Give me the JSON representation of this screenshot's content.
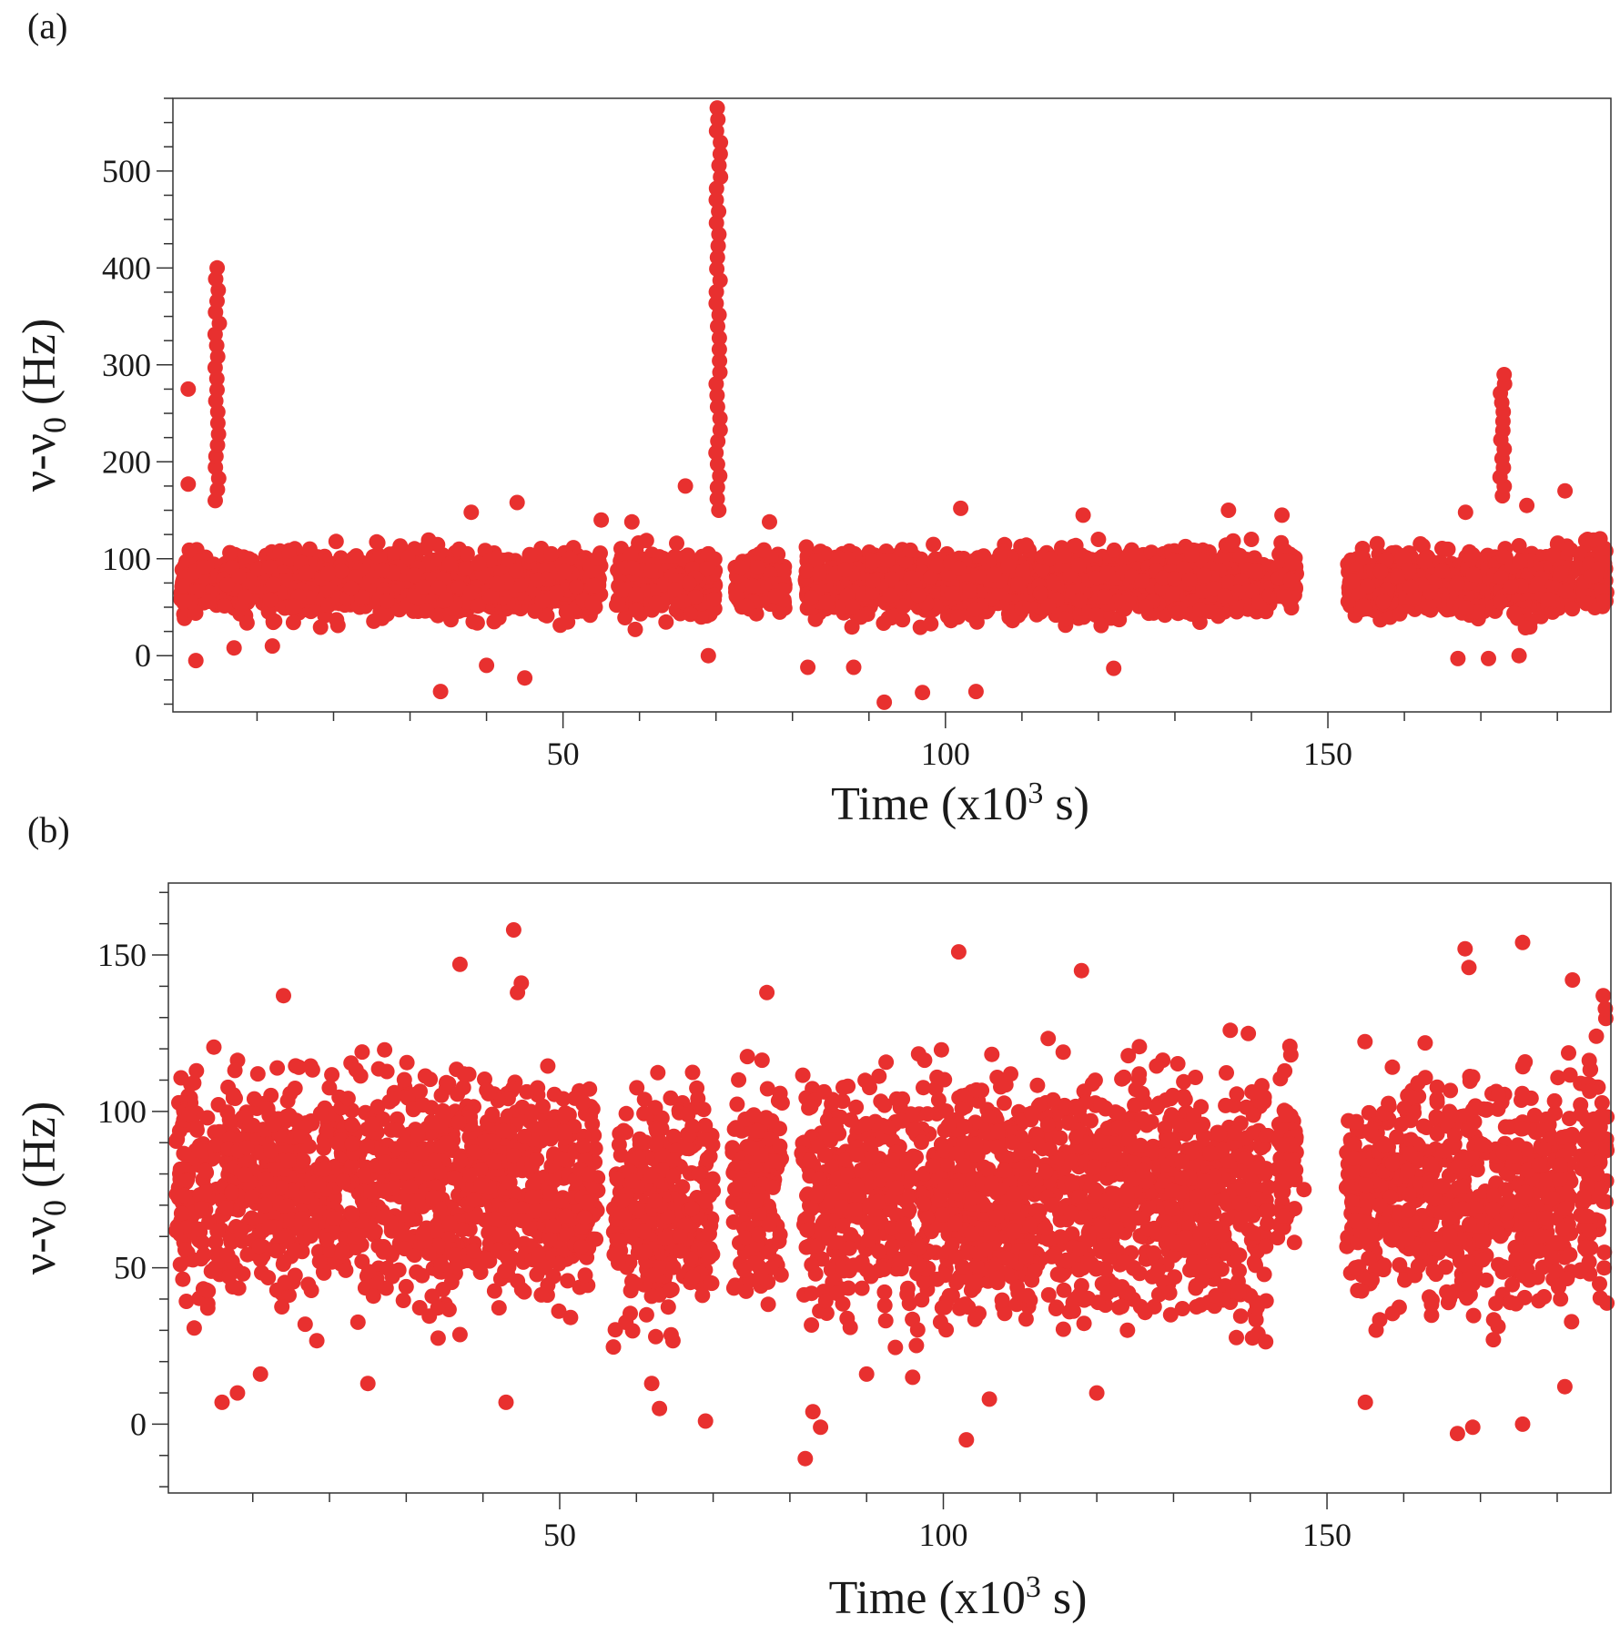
{
  "colors": {
    "marker": "#e8302f",
    "axis": "#333333"
  },
  "chart_data": [
    {
      "id": "a",
      "type": "scatter",
      "panel_label": "(a)",
      "xlabel": "Time (x10",
      "xlabel_sup": "3",
      "xlabel_tail": " s)",
      "ylabel": "ν-ν",
      "ylabel_sub": "0",
      "ylabel_tail": " (Hz)",
      "xlim": [
        -1,
        187
      ],
      "ylim": [
        -58,
        575
      ],
      "xticks": [
        50,
        100,
        150
      ],
      "xticks_minor_step": 10,
      "yticks": [
        0,
        100,
        200,
        300,
        400,
        500
      ],
      "yticks_minor_step": 25,
      "segments": [
        {
          "start": 0,
          "end": 55,
          "lo": 30,
          "hi": 120
        },
        {
          "start": 57,
          "end": 70,
          "lo": 30,
          "hi": 118
        },
        {
          "start": 72.5,
          "end": 79,
          "lo": 35,
          "hi": 110
        },
        {
          "start": 81.5,
          "end": 142.5,
          "lo": 30,
          "hi": 120
        },
        {
          "start": 143.5,
          "end": 146,
          "lo": 40,
          "hi": 118
        },
        {
          "start": 152.5,
          "end": 171,
          "lo": 30,
          "hi": 118
        },
        {
          "start": 171.5,
          "end": 182,
          "lo": 30,
          "hi": 120
        },
        {
          "start": 183,
          "end": 186.5,
          "lo": 35,
          "hi": 130
        }
      ],
      "spikes": [
        {
          "x": 4.8,
          "lo": 160,
          "hi": 400,
          "n": 22
        },
        {
          "x": 70.3,
          "lo": 150,
          "hi": 565,
          "n": 36
        },
        {
          "x": 172.8,
          "lo": 165,
          "hi": 290,
          "n": 14
        }
      ],
      "outliers": [
        [
          1,
          275
        ],
        [
          1,
          177
        ],
        [
          34,
          -37
        ],
        [
          40,
          -10
        ],
        [
          45,
          -23
        ],
        [
          92,
          -48
        ],
        [
          97,
          -38
        ],
        [
          104,
          -37
        ],
        [
          122,
          -13
        ],
        [
          82,
          -12
        ],
        [
          88,
          -12
        ],
        [
          102,
          152
        ],
        [
          144,
          145
        ],
        [
          140,
          120
        ],
        [
          118,
          145
        ],
        [
          38,
          148
        ],
        [
          44,
          158
        ],
        [
          66,
          175
        ],
        [
          168,
          148
        ],
        [
          176,
          155
        ],
        [
          181,
          170
        ],
        [
          137,
          150
        ],
        [
          55,
          140
        ],
        [
          59,
          138
        ],
        [
          77,
          138
        ],
        [
          171,
          -3
        ],
        [
          175,
          0
        ],
        [
          167,
          -3
        ],
        [
          69,
          0
        ],
        [
          12,
          10
        ],
        [
          7,
          8
        ],
        [
          120,
          120
        ],
        [
          2,
          -5
        ]
      ]
    },
    {
      "id": "b",
      "type": "scatter",
      "panel_label": "(b)",
      "xlabel": "Time (x10",
      "xlabel_sup": "3",
      "xlabel_tail": " s)",
      "ylabel": "ν-ν",
      "ylabel_sub": "0",
      "ylabel_tail": " (Hz)",
      "xlim": [
        -1,
        187
      ],
      "ylim": [
        -22,
        173
      ],
      "xticks": [
        50,
        100,
        150
      ],
      "xticks_minor_step": 10,
      "yticks": [
        0,
        50,
        100,
        150
      ],
      "yticks_minor_step": 10,
      "segments": [
        {
          "start": 0,
          "end": 55,
          "lo": 25,
          "hi": 125
        },
        {
          "start": 57,
          "end": 70,
          "lo": 20,
          "hi": 120
        },
        {
          "start": 72.5,
          "end": 79,
          "lo": 25,
          "hi": 120
        },
        {
          "start": 81.5,
          "end": 142.5,
          "lo": 20,
          "hi": 125
        },
        {
          "start": 143.5,
          "end": 146,
          "lo": 40,
          "hi": 123
        },
        {
          "start": 152.5,
          "end": 171,
          "lo": 20,
          "hi": 125
        },
        {
          "start": 171.5,
          "end": 182,
          "lo": 20,
          "hi": 125
        },
        {
          "start": 183,
          "end": 186.5,
          "lo": 25,
          "hi": 138
        }
      ],
      "spikes": [],
      "outliers": [
        [
          44,
          158
        ],
        [
          37,
          147
        ],
        [
          102,
          151
        ],
        [
          118,
          145
        ],
        [
          168,
          152
        ],
        [
          168.5,
          146
        ],
        [
          175.5,
          154
        ],
        [
          182,
          142
        ],
        [
          186,
          137
        ],
        [
          44.5,
          138
        ],
        [
          45,
          141
        ],
        [
          77,
          138
        ],
        [
          14,
          137
        ],
        [
          82,
          -11
        ],
        [
          103,
          -5
        ],
        [
          167,
          -3
        ],
        [
          169,
          -1
        ],
        [
          84,
          -1
        ],
        [
          69,
          1
        ],
        [
          175.5,
          0
        ],
        [
          6,
          7
        ],
        [
          43,
          7
        ],
        [
          63,
          5
        ],
        [
          8,
          10
        ],
        [
          11,
          16
        ],
        [
          25,
          13
        ],
        [
          62,
          13
        ],
        [
          96,
          15
        ],
        [
          106,
          8
        ],
        [
          120,
          10
        ],
        [
          155,
          7
        ],
        [
          181,
          12
        ],
        [
          83,
          4
        ],
        [
          90,
          16
        ],
        [
          147,
          75
        ]
      ]
    }
  ]
}
